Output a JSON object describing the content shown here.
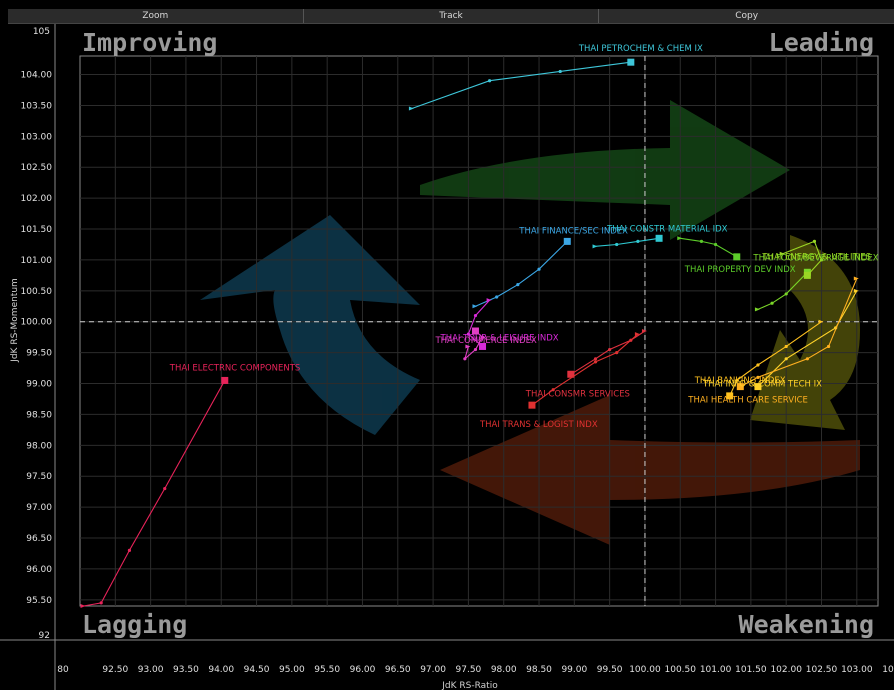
{
  "toolbar": {
    "zoom": "Zoom",
    "track": "Track",
    "copy": "Copy"
  },
  "colors": {
    "background": "#000000",
    "grid": "#333333",
    "text": "#e0e0e0"
  },
  "chart_data": {
    "type": "scatter",
    "xlabel": "JdK RS-Ratio",
    "ylabel": "JdK RS-Momentum",
    "xlim": [
      92.0,
      103.3
    ],
    "ylim": [
      95.4,
      104.3
    ],
    "center": [
      100,
      100
    ],
    "grid": true,
    "x_ticks": [
      "92.50",
      "93.00",
      "93.50",
      "94.00",
      "94.50",
      "95.00",
      "95.50",
      "96.00",
      "96.50",
      "97.00",
      "97.50",
      "98.00",
      "98.50",
      "99.00",
      "99.50",
      "100.00",
      "100.50",
      "101.00",
      "101.50",
      "102.00",
      "102.50",
      "103.00"
    ],
    "x_extra": {
      "left": "80",
      "right": "10"
    },
    "y_ticks": [
      "95.50",
      "96.00",
      "96.50",
      "97.00",
      "97.50",
      "98.00",
      "98.50",
      "99.00",
      "99.50",
      "100.00",
      "100.50",
      "101.00",
      "101.50",
      "102.00",
      "102.50",
      "103.00",
      "103.50",
      "104.00"
    ],
    "y_extra": {
      "top": "105",
      "bottom": "92"
    },
    "quadrants": {
      "top_left": "Improving",
      "top_right": "Leading",
      "bottom_left": "Lagging",
      "bottom_right": "Weakening"
    },
    "series": [
      {
        "name": "THAI PETROCHEM & CHEM IX",
        "color": "#3ec6d9",
        "points": [
          [
            96.7,
            103.45
          ],
          [
            97.8,
            103.9
          ],
          [
            98.8,
            104.05
          ],
          [
            99.8,
            104.2
          ]
        ]
      },
      {
        "name": "THAI FINANCE/SEC INDEX",
        "color": "#3ba7e6",
        "points": [
          [
            97.6,
            100.25
          ],
          [
            97.9,
            100.4
          ],
          [
            98.2,
            100.6
          ],
          [
            98.5,
            100.85
          ],
          [
            98.9,
            101.3
          ]
        ]
      },
      {
        "name": "THAI CONSTR MATERIAL IDX",
        "color": "#2fc9d2",
        "points": [
          [
            99.3,
            101.22
          ],
          [
            99.6,
            101.25
          ],
          [
            99.9,
            101.3
          ],
          [
            100.2,
            101.35
          ]
        ]
      },
      {
        "name": "THAI PROPERTY DEV INDX",
        "color": "#5ccc2a",
        "points": [
          [
            100.5,
            101.35
          ],
          [
            100.8,
            101.3
          ],
          [
            101.0,
            101.25
          ],
          [
            101.3,
            101.05
          ]
        ]
      },
      {
        "name": "THAI FOOD/BEVERAGE INDEX",
        "color": "#7ad628",
        "points": [
          [
            101.6,
            100.2
          ],
          [
            101.8,
            100.3
          ],
          [
            102.0,
            100.45
          ],
          [
            102.3,
            100.8
          ]
        ]
      },
      {
        "name": "THAI ENERGY & UTILITIES",
        "color": "#9ad624",
        "points": [
          [
            101.95,
            101.1
          ],
          [
            102.4,
            101.3
          ],
          [
            102.5,
            101.0
          ],
          [
            102.3,
            100.75
          ]
        ]
      },
      {
        "name": "THAI TOUR & LEISURE INDX",
        "color": "#d82ad8",
        "points": [
          [
            97.8,
            100.35
          ],
          [
            97.6,
            100.1
          ],
          [
            97.5,
            99.8
          ],
          [
            97.7,
            99.6
          ]
        ]
      },
      {
        "name": "THAI COMMERCE INDEX",
        "color": "#e23fc4",
        "points": [
          [
            97.5,
            99.6
          ],
          [
            97.45,
            99.4
          ],
          [
            97.6,
            99.55
          ],
          [
            97.7,
            99.75
          ],
          [
            97.6,
            99.85
          ]
        ]
      },
      {
        "name": "THAI CONSMR SERVICES",
        "color": "#e0313f",
        "points": [
          [
            100.0,
            99.85
          ],
          [
            99.8,
            99.7
          ],
          [
            99.5,
            99.55
          ],
          [
            99.3,
            99.4
          ],
          [
            98.95,
            99.15
          ]
        ]
      },
      {
        "name": "THAI TRANS & LOGIST INDX",
        "color": "#e03131",
        "points": [
          [
            99.9,
            99.8
          ],
          [
            99.6,
            99.5
          ],
          [
            99.3,
            99.35
          ],
          [
            98.7,
            98.9
          ],
          [
            98.4,
            98.65
          ]
        ]
      },
      {
        "name": "THAI ELECTRNC COMPONENTS",
        "color": "#e8235a",
        "points": [
          [
            92.05,
            95.4
          ],
          [
            92.3,
            95.45
          ],
          [
            92.7,
            96.3
          ],
          [
            93.2,
            97.3
          ],
          [
            94.05,
            99.05
          ]
        ]
      },
      {
        "name": "THAI BANKING INDEX",
        "color": "#ffc21f",
        "points": [
          [
            102.5,
            100.0
          ],
          [
            102.0,
            99.6
          ],
          [
            101.6,
            99.3
          ],
          [
            101.3,
            99.05
          ],
          [
            101.2,
            98.8
          ]
        ]
      },
      {
        "name": "THAI INFO & COMM TECH IX",
        "color": "#ffd32a",
        "points": [
          [
            103.0,
            100.5
          ],
          [
            102.7,
            99.9
          ],
          [
            102.0,
            99.4
          ],
          [
            101.6,
            98.95
          ]
        ]
      },
      {
        "name": "THAI HEALTH CARE SERVICE",
        "color": "#ffb020",
        "points": [
          [
            103.0,
            100.7
          ],
          [
            102.6,
            99.6
          ],
          [
            102.3,
            99.4
          ],
          [
            101.6,
            99.1
          ],
          [
            101.35,
            98.95
          ]
        ]
      }
    ],
    "labels": [
      {
        "text": "THAI PETROCHEM & CHEM IX",
        "series": 0
      },
      {
        "text": "THAI FINANCE/SEC INDEX",
        "series": 1
      },
      {
        "text": "THAI CONSTR MATERIAL IDX",
        "series": 2
      },
      {
        "text": "THAI PROPERTY DEV INDX",
        "series": 3
      },
      {
        "text": "THAI FOOD/BEVERAGE INDEX",
        "series": 4
      },
      {
        "text": "THAI ENERGY & UTILITIES",
        "series": 5
      },
      {
        "text": "THAI TOUR & LEISURE INDX",
        "series": 6
      },
      {
        "text": "THAI COMMERCE INDEX",
        "series": 7
      },
      {
        "text": "THAI CONSMR SERVICES",
        "series": 8
      },
      {
        "text": "THAI TRANS & LOGIST INDX",
        "series": 9
      },
      {
        "text": "THAI ELECTRNC COMPONENTS",
        "series": 10
      },
      {
        "text": "THAI BANKING INDEX",
        "series": 11
      },
      {
        "text": "THAI INFO & COMM TECH IX",
        "series": 12
      },
      {
        "text": "THAI HEALTH CARE SERVICE",
        "series": 13
      }
    ]
  }
}
